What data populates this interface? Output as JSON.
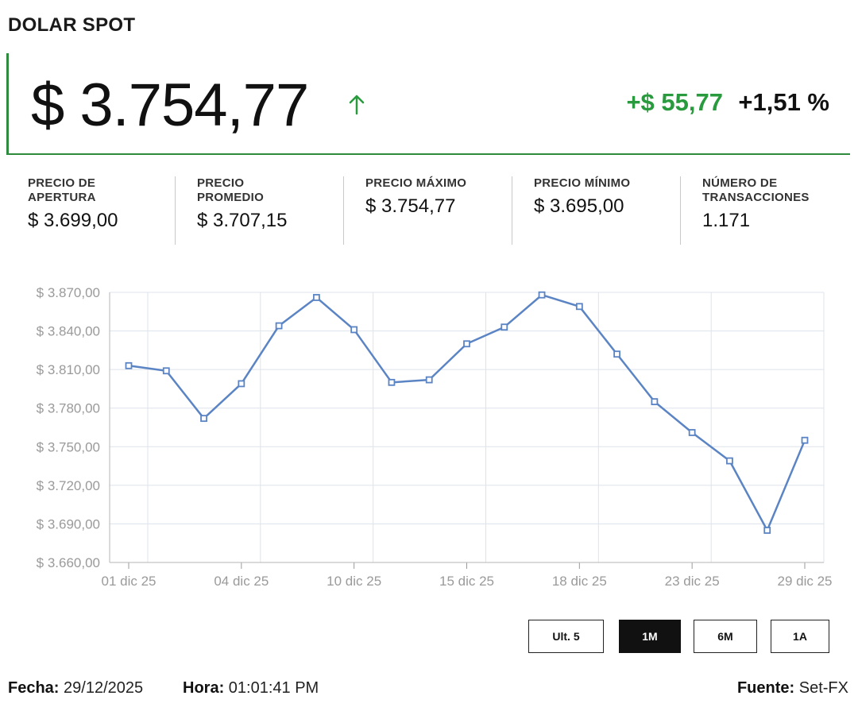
{
  "header": {
    "title": "DOLAR SPOT"
  },
  "price": {
    "current": "$ 3.754,77",
    "change_abs": "+$ 55,77",
    "change_pct": "+1,51 %",
    "direction_icon": "arrow-up-icon",
    "up_color": "#2a9a3e"
  },
  "stats": [
    {
      "label": "PRECIO DE\nAPERTURA",
      "value": "$ 3.699,00"
    },
    {
      "label": "PRECIO\nPROMEDIO",
      "value": "$ 3.707,15"
    },
    {
      "label": "PRECIO MÁXIMO",
      "value": "$ 3.754,77"
    },
    {
      "label": "PRECIO MÍNIMO",
      "value": "$ 3.695,00"
    },
    {
      "label": "NÚMERO DE\nTRANSACCIONES",
      "value": "1.171"
    }
  ],
  "chart_data": {
    "type": "line",
    "title": "",
    "xlabel": "",
    "ylabel": "",
    "ylim": [
      3660,
      3870
    ],
    "y_ticks": [
      "$ 3.870,00",
      "$ 3.840,00",
      "$ 3.810,00",
      "$ 3.780,00",
      "$ 3.750,00",
      "$ 3.720,00",
      "$ 3.690,00",
      "$ 3.660,00"
    ],
    "y_tick_values": [
      3870,
      3840,
      3810,
      3780,
      3750,
      3720,
      3690,
      3660
    ],
    "x_tick_labels": [
      "01 dic 25",
      "04 dic 25",
      "10 dic 25",
      "15 dic 25",
      "18 dic 25",
      "23 dic 25",
      "29 dic 25"
    ],
    "x_tick_index": [
      0,
      3,
      6,
      9,
      12,
      15,
      18
    ],
    "grid": true,
    "line_color": "#5b84c4",
    "series": [
      {
        "values": [
          3813,
          3809,
          3772,
          3799,
          3844,
          3866,
          3841,
          3800,
          3802,
          3830,
          3843,
          3868,
          3859,
          3822,
          3785,
          3761,
          3739,
          3685,
          3755
        ]
      }
    ]
  },
  "range_buttons": [
    {
      "label": "Ult. 5",
      "active": false
    },
    {
      "label": "1M",
      "active": true
    },
    {
      "label": "6M",
      "active": false
    },
    {
      "label": "1A",
      "active": false
    }
  ],
  "footer": {
    "fecha_label": "Fecha:",
    "fecha_value": "29/12/2025",
    "hora_label": "Hora:",
    "hora_value": "01:01:41 PM",
    "fuente_label": "Fuente:",
    "fuente_value": "Set-FX"
  }
}
